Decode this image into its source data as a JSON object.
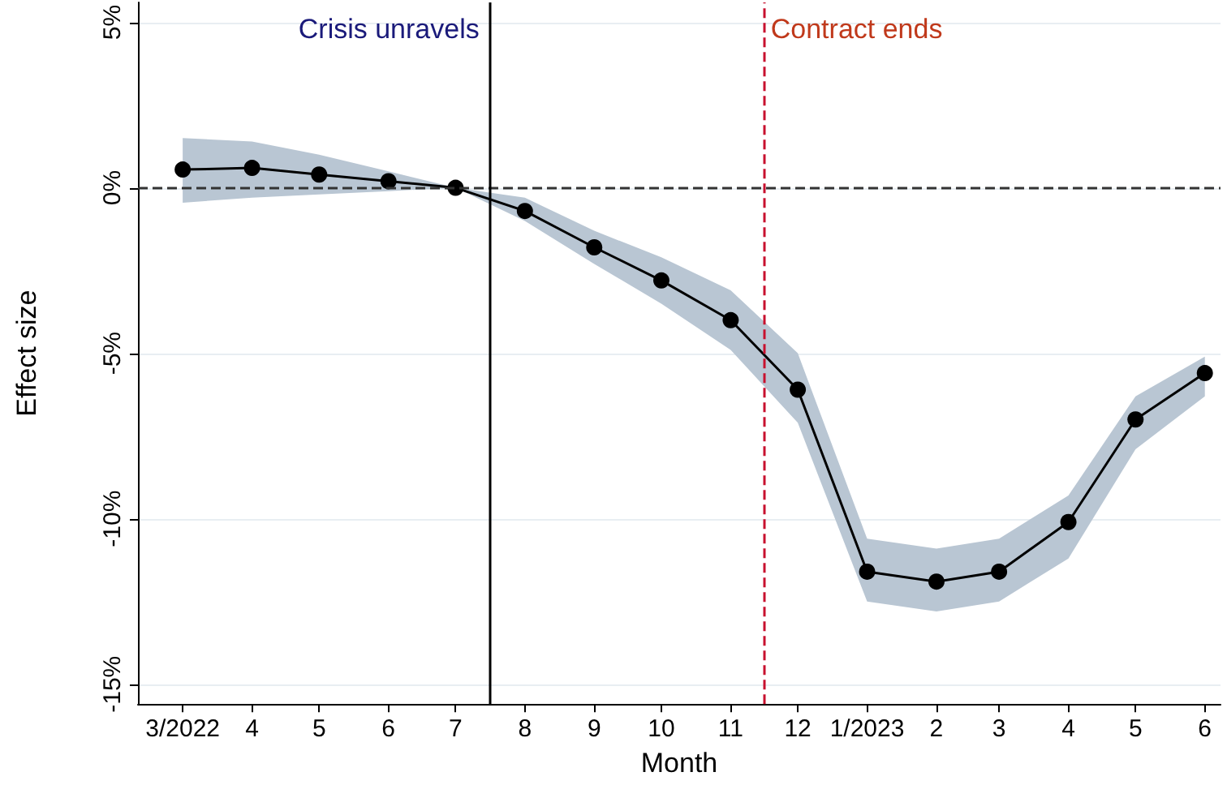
{
  "chart_data": {
    "type": "line",
    "xlabel": "Month",
    "ylabel": "Effect size",
    "x": [
      "2022-03",
      "2022-04",
      "2022-05",
      "2022-06",
      "2022-07",
      "2022-08",
      "2022-09",
      "2022-10",
      "2022-11",
      "2022-12",
      "2023-01",
      "2023-02",
      "2023-03",
      "2023-04",
      "2023-05",
      "2023-06"
    ],
    "xlim": [
      "2022-02-09",
      "2023-06-08"
    ],
    "xticks": [
      {
        "value": "2022-03",
        "label": "3/2022"
      },
      {
        "value": "2022-04",
        "label": "4"
      },
      {
        "value": "2022-05",
        "label": "5"
      },
      {
        "value": "2022-06",
        "label": "6"
      },
      {
        "value": "2022-07",
        "label": "7"
      },
      {
        "value": "2022-08",
        "label": "8"
      },
      {
        "value": "2022-09",
        "label": "9"
      },
      {
        "value": "2022-10",
        "label": "10"
      },
      {
        "value": "2022-11",
        "label": "11"
      },
      {
        "value": "2022-12",
        "label": "12"
      },
      {
        "value": "2023-01",
        "label": "1/2023"
      },
      {
        "value": "2023-02",
        "label": "2"
      },
      {
        "value": "2023-03",
        "label": "3"
      },
      {
        "value": "2023-04",
        "label": "4"
      },
      {
        "value": "2023-05",
        "label": "5"
      },
      {
        "value": "2023-06",
        "label": "6"
      }
    ],
    "ylim": [
      -15.6,
      5.6
    ],
    "yticks": [
      {
        "value": -15,
        "label": "-15%"
      },
      {
        "value": -10,
        "label": "-10%"
      },
      {
        "value": -5,
        "label": "-5%"
      },
      {
        "value": 0,
        "label": "0%"
      },
      {
        "value": 5,
        "label": "5%"
      }
    ],
    "series": [
      {
        "color": "#000000",
        "values": [
          0.55,
          0.6,
          0.4,
          0.2,
          0,
          -0.7,
          -1.8,
          -2.8,
          -4.0,
          -6.1,
          -11.6,
          -11.9,
          -11.6,
          -10.1,
          -7.0,
          -5.6
        ],
        "upper": [
          1.5,
          1.4,
          1.0,
          0.5,
          0,
          -0.3,
          -1.3,
          -2.1,
          -3.1,
          -5.0,
          -10.6,
          -10.9,
          -10.6,
          -9.3,
          -6.3,
          -5.1
        ],
        "lower": [
          -0.45,
          -0.3,
          -0.2,
          -0.1,
          0,
          -1.0,
          -2.3,
          -3.5,
          -4.9,
          -7.1,
          -12.5,
          -12.8,
          -12.5,
          -11.2,
          -7.9,
          -6.3
        ]
      }
    ],
    "ref_lines": [
      {
        "axis": "y",
        "value": 0,
        "label": null,
        "color": "#333333",
        "line_style": "dashed"
      },
      {
        "axis": "x",
        "value": "2022-07-16",
        "label": "Crisis unravels",
        "color": "#000000",
        "line_style": "solid"
      },
      {
        "axis": "x",
        "value": "2022-11-16",
        "label": "Contract ends",
        "color": "#c8102e",
        "line_style": "dashed"
      }
    ],
    "marker": "circle",
    "line_style": "solid",
    "grid": "y"
  }
}
